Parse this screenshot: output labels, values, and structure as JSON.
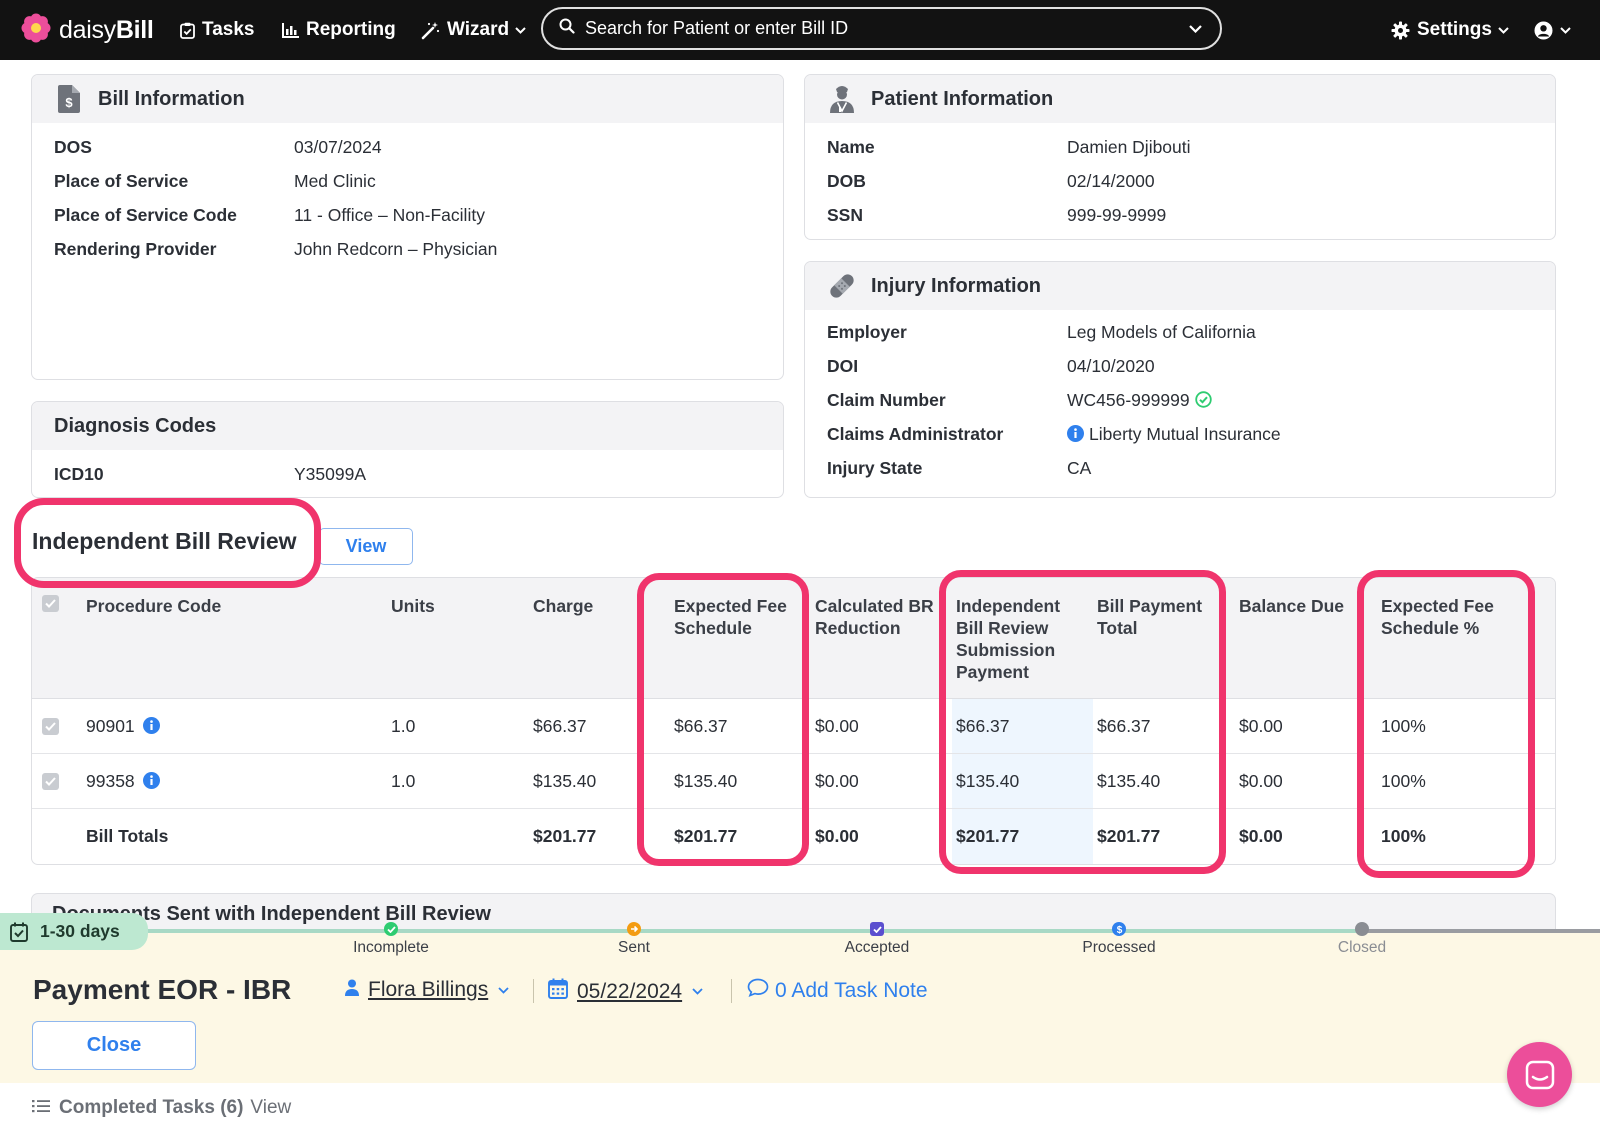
{
  "app": {
    "logo_light": "daisy",
    "logo_bold": "Bill",
    "brand_color": "#ec4e9a"
  },
  "nav": {
    "tasks": "Tasks",
    "reporting": "Reporting",
    "wizard": "Wizard",
    "search_placeholder": "Search for Patient or enter Bill ID",
    "settings": "Settings"
  },
  "bill_info": {
    "title": "Bill Information",
    "rows": [
      {
        "label": "DOS",
        "value": "03/07/2024"
      },
      {
        "label": "Place of Service",
        "value": "Med Clinic"
      },
      {
        "label": "Place of Service Code",
        "value": "11 - Office – Non-Facility"
      },
      {
        "label": "Rendering Provider",
        "value": "John Redcorn – Physician"
      }
    ]
  },
  "patient_info": {
    "title": "Patient Information",
    "rows": [
      {
        "label": "Name",
        "value": "Damien Djibouti"
      },
      {
        "label": "DOB",
        "value": "02/14/2000"
      },
      {
        "label": "SSN",
        "value": "999-99-9999"
      }
    ]
  },
  "injury_info": {
    "title": "Injury Information",
    "employer_label": "Employer",
    "employer": "Leg Models of California",
    "doi_label": "DOI",
    "doi": "04/10/2020",
    "claim_label": "Claim Number",
    "claim": "WC456-999999",
    "admin_label": "Claims Administrator",
    "admin": "Liberty Mutual Insurance",
    "state_label": "Injury State",
    "state": "CA"
  },
  "diagnosis": {
    "title": "Diagnosis Codes",
    "label": "ICD10",
    "code": "Y35099A"
  },
  "ibr": {
    "title": "Independent Bill Review",
    "view_label": "View",
    "headers": {
      "procedure_code": "Procedure Code",
      "units": "Units",
      "charge": "Charge",
      "expected_fee": "Expected Fee Schedule",
      "calc_br": "Calculated BR Reduction",
      "ibr_payment": "Independent Bill Review Submission Payment",
      "bill_payment_total": "Bill Payment Total",
      "balance_due": "Balance Due",
      "expected_fee_pct": "Expected Fee Schedule %"
    },
    "rows": [
      {
        "code": "90901",
        "units": "1.0",
        "charge": "$66.37",
        "expected": "$66.37",
        "br": "$0.00",
        "ibr_pay": "$66.37",
        "total": "$66.37",
        "balance": "$0.00",
        "pct": "100%"
      },
      {
        "code": "99358",
        "units": "1.0",
        "charge": "$135.40",
        "expected": "$135.40",
        "br": "$0.00",
        "ibr_pay": "$135.40",
        "total": "$135.40",
        "balance": "$0.00",
        "pct": "100%"
      }
    ],
    "totals": {
      "label": "Bill Totals",
      "charge": "$201.77",
      "expected": "$201.77",
      "br": "$0.00",
      "ibr_pay": "$201.77",
      "total": "$201.77",
      "balance": "$0.00",
      "pct": "100%"
    },
    "highlight_color": "#f0346c"
  },
  "documents": {
    "title": "Documents Sent with Independent Bill Review"
  },
  "task": {
    "days_badge": "1-30 days",
    "steps": [
      "Incomplete",
      "Sent",
      "Accepted",
      "Processed",
      "Closed"
    ],
    "title": "Payment EOR - IBR",
    "assignee": "Flora Billings",
    "due_date": "05/22/2024",
    "note_link": "0 Add Task Note",
    "close_label": "Close"
  },
  "completed": {
    "label": "Completed Tasks (6)",
    "view": "View"
  }
}
